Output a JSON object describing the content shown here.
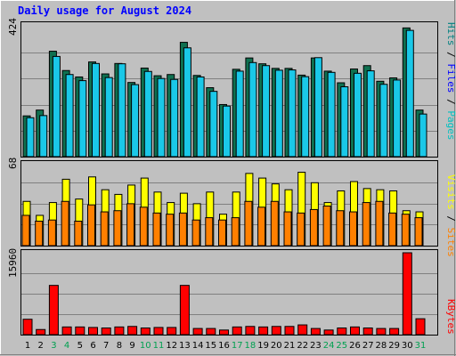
{
  "chart_data": {
    "type": "bar",
    "title": "Daily usage for August 2024",
    "days": [
      "1",
      "2",
      "3",
      "4",
      "5",
      "6",
      "7",
      "8",
      "9",
      "10",
      "11",
      "12",
      "13",
      "14",
      "15",
      "16",
      "17",
      "18",
      "19",
      "20",
      "21",
      "22",
      "23",
      "24",
      "25",
      "26",
      "27",
      "28",
      "29",
      "30",
      "31"
    ],
    "weekend_days": [
      "3",
      "4",
      "10",
      "11",
      "17",
      "18",
      "24",
      "25",
      "31"
    ],
    "panels": {
      "top": {
        "ymax_label": "424",
        "ymax": 424,
        "series": [
          {
            "name": "Pages",
            "color": "#0f7050",
            "values": [
              133,
              152,
              344,
              281,
              260,
              309,
              270,
              304,
              242,
              289,
              264,
              268,
              373,
              265,
              225,
              170,
              285,
              322,
              303,
              288,
              288,
              266,
              322,
              279,
              241,
              286,
              297,
              246,
              257,
              420,
              152
            ]
          },
          {
            "name": "Files",
            "color": "#1ac8e8",
            "values": [
              127,
              134,
              327,
              268,
              248,
              304,
              258,
              303,
              235,
              278,
              255,
              252,
              355,
              260,
              213,
              165,
              279,
              307,
              297,
              282,
              283,
              261,
              323,
              275,
              228,
              272,
              280,
              236,
              250,
              412,
              139
            ]
          },
          {
            "name": "Hits",
            "color": "#008080",
            "values": []
          }
        ],
        "side_labels": [
          {
            "text": "Hits",
            "color": "#008080"
          },
          {
            "text": " / ",
            "color": "#000000"
          },
          {
            "text": "Files",
            "color": "#0000ff"
          },
          {
            "text": " / ",
            "color": "#000000"
          },
          {
            "text": "Pages",
            "color": "#00c0c0"
          }
        ]
      },
      "middle": {
        "ymax_label": "68",
        "ymax": 68,
        "series": [
          {
            "name": "Visits",
            "color": "#ffff00",
            "values": [
              38,
              26,
              37,
              57,
              40,
              59,
              48,
              44,
              52,
              58,
              46,
              37,
              45,
              36,
              46,
              27,
              46,
              62,
              58,
              53,
              48,
              63,
              54,
              37,
              47,
              55,
              49,
              48,
              47,
              30,
              29
            ]
          },
          {
            "name": "Sites",
            "color": "#ff8000",
            "values": [
              26,
              21,
              22,
              38,
              21,
              35,
              29,
              30,
              36,
              33,
              28,
              27,
              28,
              22,
              24,
              22,
              24,
              38,
              33,
              38,
              29,
              28,
              31,
              34,
              30,
              29,
              37,
              38,
              28,
              27,
              24
            ]
          }
        ],
        "side_labels": [
          {
            "text": "Visits",
            "color": "#ffff00"
          },
          {
            "text": " / ",
            "color": "#000000"
          },
          {
            "text": "Sites",
            "color": "#ff8000"
          }
        ]
      },
      "bottom": {
        "ymax_label": "15960",
        "ymax": 15960,
        "series": [
          {
            "name": "KBytes",
            "color": "#ff0000",
            "values": [
              3000,
              1000,
              9600,
              1500,
              1500,
              1400,
              1300,
              1500,
              1600,
              1300,
              1400,
              1400,
              9600,
              1200,
              1200,
              900,
              1500,
              1600,
              1500,
              1600,
              1600,
              1900,
              1200,
              900,
              1300,
              1500,
              1300,
              1200,
              1200,
              15960,
              3100
            ]
          }
        ],
        "side_labels": [
          {
            "text": "KBytes",
            "color": "#ff0000"
          }
        ]
      }
    }
  }
}
